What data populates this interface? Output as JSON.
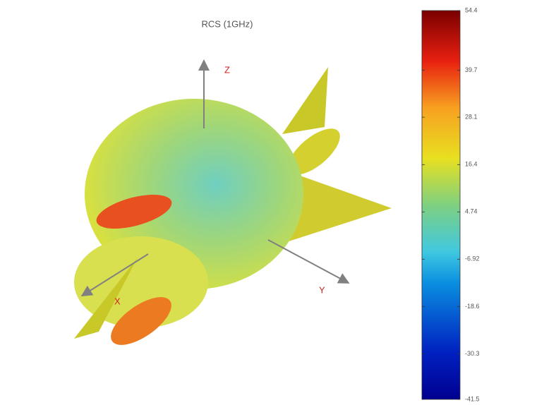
{
  "chart_data": {
    "type": "surface3d",
    "title": "RCS (1GHz)",
    "axis_labels": {
      "x": "X",
      "y": "Y",
      "z": "Z"
    },
    "colorbar": {
      "colormap": "jet",
      "lim": [
        -41.5,
        54.4
      ],
      "ticks": [
        54.4,
        39.7,
        28.1,
        16.4,
        4.74,
        -6.92,
        -18.6,
        -30.3,
        -41.5
      ]
    }
  }
}
